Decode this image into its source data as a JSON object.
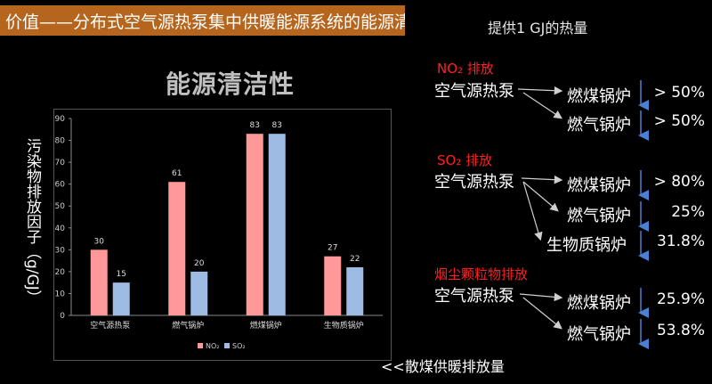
{
  "header": {
    "title": "价值——分布式空气源热泵集中供暖能源系统的能源清洁性",
    "heat_label": "提供1 GJ的热量"
  },
  "chart_heading": "能源清洁性",
  "chart_data": {
    "type": "bar",
    "categories": [
      "空气源热泵",
      "燃气锅炉",
      "燃煤锅炉",
      "生物质锅炉"
    ],
    "series": [
      {
        "name": "NO₂",
        "values": [
          30,
          61,
          83,
          27
        ],
        "color": "#ff9999"
      },
      {
        "name": "SO₂",
        "values": [
          15,
          20,
          83,
          22
        ],
        "color": "#9dbbe3"
      }
    ],
    "ylabel": "污染物排放因子（g/GJ）",
    "ylim": [
      0,
      90
    ],
    "yticks": [
      0,
      10,
      20,
      30,
      40,
      50,
      60,
      70,
      80,
      90
    ],
    "grid": false,
    "legend": "bottom"
  },
  "note": "<<散煤供暖排放量",
  "sections": [
    {
      "heading": "NO₂ 排放",
      "source": "空气源热泵",
      "rows": [
        {
          "target": "燃煤锅炉",
          "value": "> 50%"
        },
        {
          "target": "燃气锅炉",
          "value": "> 50%"
        }
      ]
    },
    {
      "heading": "SO₂ 排放",
      "source": "空气源热泵",
      "rows": [
        {
          "target": "燃煤锅炉",
          "value": "> 80%"
        },
        {
          "target": "燃气锅炉",
          "value": "25%"
        },
        {
          "target": "生物质锅炉",
          "value": "31.8%"
        }
      ]
    },
    {
      "heading": "烟尘颗粒物排放",
      "source": "空气源热泵",
      "rows": [
        {
          "target": "燃煤锅炉",
          "value": "25.9%"
        },
        {
          "target": "燃气锅炉",
          "value": "53.8%"
        }
      ]
    }
  ],
  "colors": {
    "title_bar": "#b5651d",
    "section_heading": "#ff2020",
    "down_arrow": "#4a7fd4"
  }
}
